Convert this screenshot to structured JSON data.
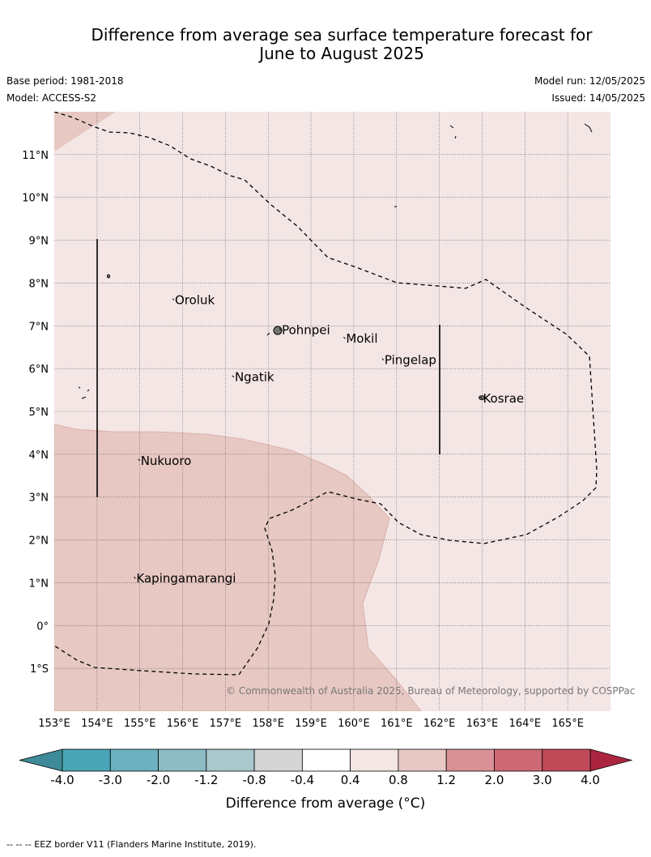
{
  "header": {
    "title_line1": "Difference from average sea surface temperature forecast for",
    "title_line2": "June to August 2025",
    "base_period": "Base period: 1981-2018",
    "model": "Model: ACCESS-S2",
    "model_run": "Model run: 12/05/2025",
    "issued": "Issued: 14/05/2025"
  },
  "map": {
    "lon_range": [
      153,
      166
    ],
    "lat_range": [
      -2,
      12
    ],
    "lon_labels": [
      "153°E",
      "154°E",
      "155°E",
      "156°E",
      "157°E",
      "158°E",
      "159°E",
      "160°E",
      "161°E",
      "162°E",
      "163°E",
      "164°E",
      "165°E"
    ],
    "lat_labels": [
      "11°N",
      "10°N",
      "9°N",
      "8°N",
      "7°N",
      "6°N",
      "5°N",
      "4°N",
      "3°N",
      "2°N",
      "1°N",
      "0°",
      "1°S"
    ],
    "places": [
      {
        "name": "Oroluk",
        "lon": 155.8,
        "lat": 7.6
      },
      {
        "name": "Pohnpei",
        "lon": 158.3,
        "lat": 6.9
      },
      {
        "name": "Mokil",
        "lon": 159.8,
        "lat": 6.7
      },
      {
        "name": "Pingelap",
        "lon": 160.7,
        "lat": 6.2
      },
      {
        "name": "Ngatik",
        "lon": 157.2,
        "lat": 5.8
      },
      {
        "name": "Kosrae",
        "lon": 163.0,
        "lat": 5.3
      },
      {
        "name": "Nukuoro",
        "lon": 155.0,
        "lat": 3.85
      },
      {
        "name": "Kapingamarangi",
        "lon": 154.9,
        "lat": 1.1
      }
    ],
    "background_color": "#f4e6e5",
    "warm_color": "#e7c8c3",
    "copyright": "© Commonwealth of Australia 2025, Bureau of Meteorology, supported by COSPPac"
  },
  "colorbar": {
    "colors": [
      "#4aa6b6",
      "#6bb1c0",
      "#8dbcc5",
      "#aac8cb",
      "#d5d5d5",
      "#ffffff",
      "#f4e6e5",
      "#e7c8c3",
      "#d99197",
      "#cd6974",
      "#c14a59"
    ],
    "under_color": "#3e8a98",
    "over_color": "#ab2541",
    "tick_labels": [
      "-4.0",
      "-3.0",
      "-2.0",
      "-1.2",
      "-0.8",
      "-0.4",
      "0.4",
      "0.8",
      "1.2",
      "2.0",
      "3.0",
      "4.0"
    ],
    "label": "Difference from average (°C)"
  },
  "footer": "-- -- -- EEZ border V11 (Flanders Marine Institute, 2019)."
}
